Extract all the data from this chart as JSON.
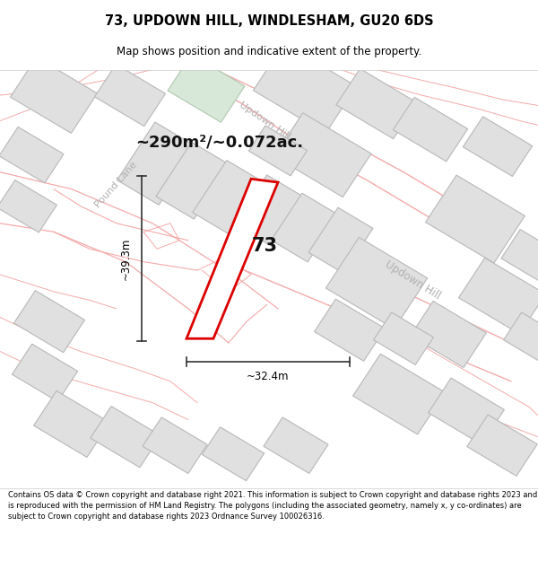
{
  "title": "73, UPDOWN HILL, WINDLESHAM, GU20 6DS",
  "subtitle": "Map shows position and indicative extent of the property.",
  "area_label": "~290m²/~0.072ac.",
  "width_label": "~32.4m",
  "height_label": "~39.3m",
  "number_label": "73",
  "footer": "Contains OS data © Crown copyright and database right 2021. This information is subject to Crown copyright and database rights 2023 and is reproduced with the permission of HM Land Registry. The polygons (including the associated geometry, namely x, y co-ordinates) are subject to Crown copyright and database rights 2023 Ordnance Survey 100026316.",
  "map_bg": "#ffffff",
  "property_color": "#dd0000",
  "road_line_color": "#f5aaaa",
  "building_face": "#e0e0e0",
  "building_edge": "#b8b8b8",
  "road_label_color": "#b0b0b0",
  "dim_line_color": "#333333",
  "area_label_color": "#111111",
  "number_label_color": "#111111"
}
